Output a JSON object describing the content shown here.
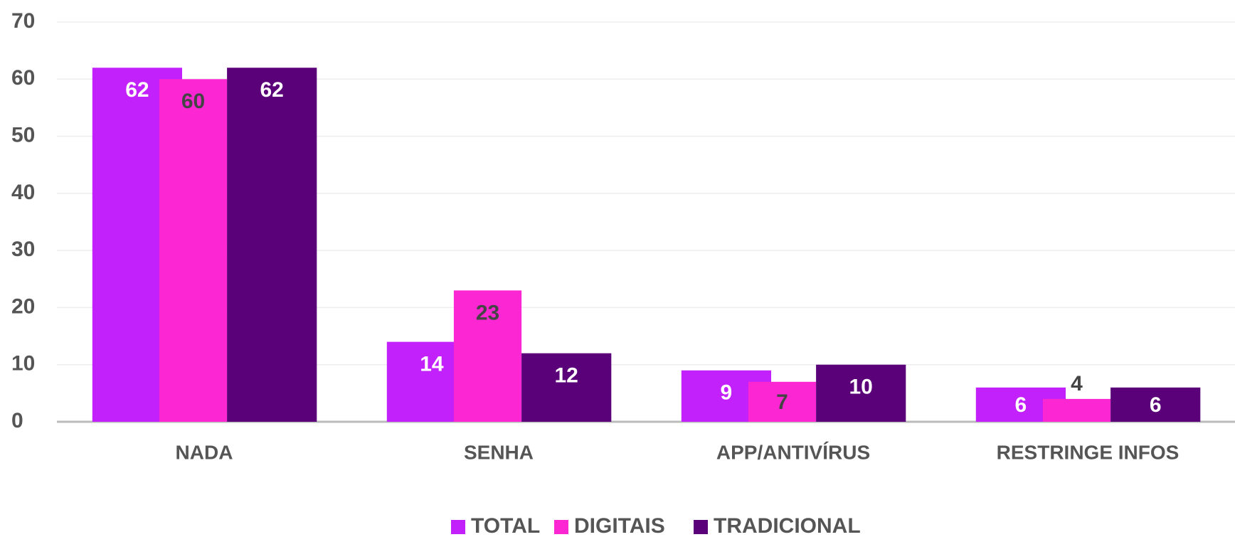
{
  "chart_data": {
    "type": "bar",
    "categories": [
      "NADA",
      "SENHA",
      "APP/ANTIVÍRUS",
      "RESTRINGE INFOS"
    ],
    "series": [
      {
        "name": "TOTAL",
        "color": "#c221fb",
        "values": [
          62,
          14,
          9,
          6
        ]
      },
      {
        "name": "DIGITAIS",
        "color": "#fc27d2",
        "values": [
          60,
          23,
          7,
          4
        ]
      },
      {
        "name": "TRADICIONAL",
        "color": "#5a0078",
        "values": [
          62,
          12,
          10,
          6
        ]
      }
    ],
    "ylim": [
      0,
      70
    ],
    "yticks": [
      0,
      10,
      20,
      30,
      40,
      50,
      60,
      70
    ],
    "grid": true,
    "legend": "bottom"
  }
}
